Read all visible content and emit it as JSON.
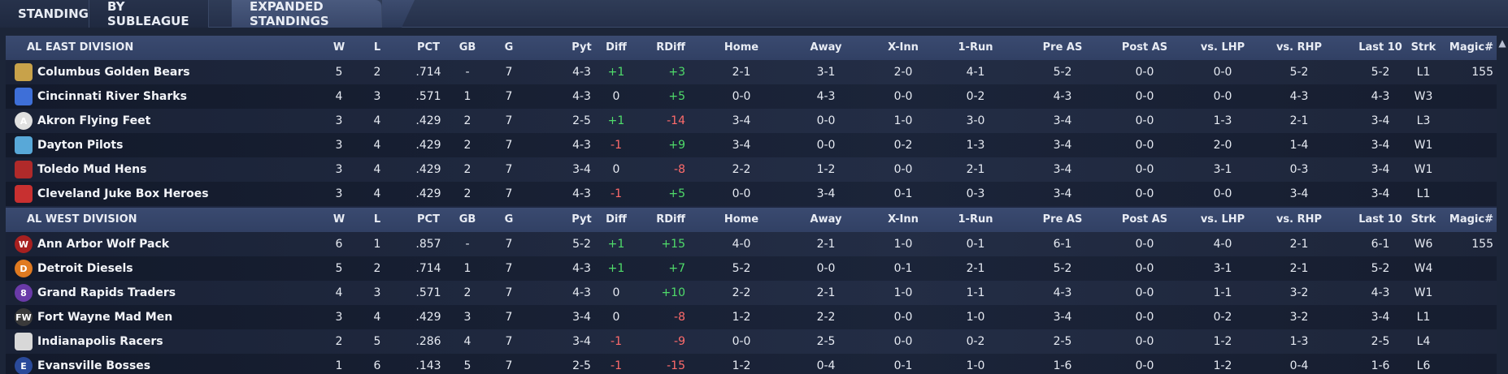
{
  "tabs": [
    {
      "label": "STANDINGS"
    },
    {
      "label": "BY SUBLEAGUE"
    },
    {
      "label": "EXPANDED STANDINGS"
    }
  ],
  "headers": [
    "W",
    "L",
    "PCT",
    "GB",
    "G",
    "Pyt",
    "Diff",
    "RDiff",
    "Home",
    "Away",
    "X-Inn",
    "1-Run",
    "Pre AS",
    "Post AS",
    "vs. LHP",
    "vs. RHP",
    "Last 10",
    "Strk",
    "Magic#"
  ],
  "divisions": [
    {
      "name": "AL EAST DIVISION",
      "teams": [
        {
          "name": "Columbus Golden Bears",
          "logo": "bear-logo-icon",
          "logo_text": "",
          "color": "#c8a24a",
          "w": "5",
          "l": "2",
          "pct": ".714",
          "gb": "-",
          "g": "7",
          "pyt": "4-3",
          "diff": "+1",
          "rdiff": "+3",
          "home": "2-1",
          "away": "3-1",
          "xinn": "2-0",
          "onerun": "4-1",
          "preas": "5-2",
          "postas": "0-0",
          "vslhp": "0-0",
          "vsrhp": "5-2",
          "last10": "5-2",
          "strk": "L1",
          "magic": "155"
        },
        {
          "name": "Cincinnati River Sharks",
          "logo": "shark-logo-icon",
          "logo_text": "",
          "color": "#3e6fd8",
          "w": "4",
          "l": "3",
          "pct": ".571",
          "gb": "1",
          "g": "7",
          "pyt": "4-3",
          "diff": "0",
          "rdiff": "+5",
          "home": "0-0",
          "away": "4-3",
          "xinn": "0-0",
          "onerun": "0-2",
          "preas": "4-3",
          "postas": "0-0",
          "vslhp": "0-0",
          "vsrhp": "4-3",
          "last10": "4-3",
          "strk": "W3",
          "magic": ""
        },
        {
          "name": "Akron  Flying Feet",
          "logo": "letter-a-logo-icon",
          "logo_text": "A",
          "color": "#e0e0e0",
          "w": "3",
          "l": "4",
          "pct": ".429",
          "gb": "2",
          "g": "7",
          "pyt": "2-5",
          "diff": "+1",
          "rdiff": "-14",
          "home": "3-4",
          "away": "0-0",
          "xinn": "1-0",
          "onerun": "3-0",
          "preas": "3-4",
          "postas": "0-0",
          "vslhp": "1-3",
          "vsrhp": "2-1",
          "last10": "3-4",
          "strk": "L3",
          "magic": ""
        },
        {
          "name": "Dayton Pilots",
          "logo": "pilots-logo-icon",
          "logo_text": "",
          "color": "#58a8d8",
          "w": "3",
          "l": "4",
          "pct": ".429",
          "gb": "2",
          "g": "7",
          "pyt": "4-3",
          "diff": "-1",
          "rdiff": "+9",
          "home": "3-4",
          "away": "0-0",
          "xinn": "0-2",
          "onerun": "1-3",
          "preas": "3-4",
          "postas": "0-0",
          "vslhp": "2-0",
          "vsrhp": "1-4",
          "last10": "3-4",
          "strk": "W1",
          "magic": ""
        },
        {
          "name": "Toledo  Mud Hens",
          "logo": "mud-hen-logo-icon",
          "logo_text": "",
          "color": "#b02a2a",
          "w": "3",
          "l": "4",
          "pct": ".429",
          "gb": "2",
          "g": "7",
          "pyt": "3-4",
          "diff": "0",
          "rdiff": "-8",
          "home": "2-2",
          "away": "1-2",
          "xinn": "0-0",
          "onerun": "2-1",
          "preas": "3-4",
          "postas": "0-0",
          "vslhp": "3-1",
          "vsrhp": "0-3",
          "last10": "3-4",
          "strk": "W1",
          "magic": ""
        },
        {
          "name": "Cleveland Juke Box Heroes",
          "logo": "jukebox-logo-icon",
          "logo_text": "",
          "color": "#c83030",
          "w": "3",
          "l": "4",
          "pct": ".429",
          "gb": "2",
          "g": "7",
          "pyt": "4-3",
          "diff": "-1",
          "rdiff": "+5",
          "home": "0-0",
          "away": "3-4",
          "xinn": "0-1",
          "onerun": "0-3",
          "preas": "3-4",
          "postas": "0-0",
          "vslhp": "0-0",
          "vsrhp": "3-4",
          "last10": "3-4",
          "strk": "L1",
          "magic": ""
        }
      ]
    },
    {
      "name": "AL WEST DIVISION",
      "teams": [
        {
          "name": "Ann Arbor Wolf Pack",
          "logo": "wolf-logo-icon",
          "logo_text": "W",
          "color": "#a82020",
          "w": "6",
          "l": "1",
          "pct": ".857",
          "gb": "-",
          "g": "7",
          "pyt": "5-2",
          "diff": "+1",
          "rdiff": "+15",
          "home": "4-0",
          "away": "2-1",
          "xinn": "1-0",
          "onerun": "0-1",
          "preas": "6-1",
          "postas": "0-0",
          "vslhp": "4-0",
          "vsrhp": "2-1",
          "last10": "6-1",
          "strk": "W6",
          "magic": "155"
        },
        {
          "name": "Detroit Diesels",
          "logo": "letter-d-logo-icon",
          "logo_text": "D",
          "color": "#e07a20",
          "w": "5",
          "l": "2",
          "pct": ".714",
          "gb": "1",
          "g": "7",
          "pyt": "4-3",
          "diff": "+1",
          "rdiff": "+7",
          "home": "5-2",
          "away": "0-0",
          "xinn": "0-1",
          "onerun": "2-1",
          "preas": "5-2",
          "postas": "0-0",
          "vslhp": "3-1",
          "vsrhp": "2-1",
          "last10": "5-2",
          "strk": "W4",
          "magic": ""
        },
        {
          "name": "Grand Rapids Traders",
          "logo": "traders-logo-icon",
          "logo_text": "8",
          "color": "#6a3aa8",
          "w": "4",
          "l": "3",
          "pct": ".571",
          "gb": "2",
          "g": "7",
          "pyt": "4-3",
          "diff": "0",
          "rdiff": "+10",
          "home": "2-2",
          "away": "2-1",
          "xinn": "1-0",
          "onerun": "1-1",
          "preas": "4-3",
          "postas": "0-0",
          "vslhp": "1-1",
          "vsrhp": "3-2",
          "last10": "4-3",
          "strk": "W1",
          "magic": ""
        },
        {
          "name": "Fort Wayne Mad Men",
          "logo": "fw-logo-icon",
          "logo_text": "FW",
          "color": "#3a3a3a",
          "w": "3",
          "l": "4",
          "pct": ".429",
          "gb": "3",
          "g": "7",
          "pyt": "3-4",
          "diff": "0",
          "rdiff": "-8",
          "home": "1-2",
          "away": "2-2",
          "xinn": "0-0",
          "onerun": "1-0",
          "preas": "3-4",
          "postas": "0-0",
          "vslhp": "0-2",
          "vsrhp": "3-2",
          "last10": "3-4",
          "strk": "L1",
          "magic": ""
        },
        {
          "name": "Indianapolis Racers",
          "logo": "checkered-flag-logo-icon",
          "logo_text": "",
          "color": "#d8d8d8",
          "w": "2",
          "l": "5",
          "pct": ".286",
          "gb": "4",
          "g": "7",
          "pyt": "3-4",
          "diff": "-1",
          "rdiff": "-9",
          "home": "0-0",
          "away": "2-5",
          "xinn": "0-0",
          "onerun": "0-2",
          "preas": "2-5",
          "postas": "0-0",
          "vslhp": "1-2",
          "vsrhp": "1-3",
          "last10": "2-5",
          "strk": "L4",
          "magic": ""
        },
        {
          "name": "Evansville Bosses",
          "logo": "letter-e-logo-icon",
          "logo_text": "E",
          "color": "#2a4a9a",
          "w": "1",
          "l": "6",
          "pct": ".143",
          "gb": "5",
          "g": "7",
          "pyt": "2-5",
          "diff": "-1",
          "rdiff": "-15",
          "home": "1-2",
          "away": "0-4",
          "xinn": "0-1",
          "onerun": "1-0",
          "preas": "1-6",
          "postas": "0-0",
          "vslhp": "1-2",
          "vsrhp": "0-4",
          "last10": "1-6",
          "strk": "L6",
          "magic": ""
        }
      ]
    }
  ],
  "colors": {
    "positive": "#4fdc6a",
    "negative": "#ff6b6b",
    "header_bg": "#34446a",
    "tab_active": "#44557a"
  }
}
